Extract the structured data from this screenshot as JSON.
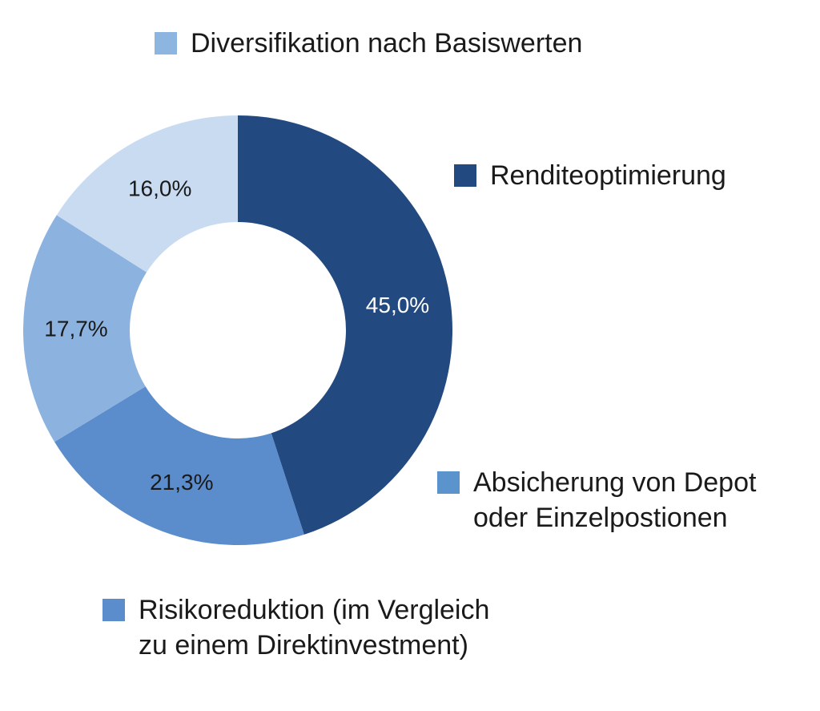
{
  "chart_data": {
    "type": "pie",
    "variant": "donut",
    "title": "",
    "categories": [
      "Renditeoptimierung",
      "Absicherung von Depot oder Einzelpostionen",
      "Risikoreduktion (im Vergleich zu einem Direktinvestment)",
      "Diversifikation nach Basiswerten"
    ],
    "values": [
      45.0,
      21.3,
      17.7,
      16.0
    ],
    "value_labels": [
      "45,0%",
      "21,3%",
      "17,7%",
      "16,0%"
    ],
    "colors": [
      "#234a80",
      "#5b8ccb",
      "#8cb2e0",
      "#c9dbf1"
    ],
    "label_colors": [
      "#ffffff",
      "#1a1a1a",
      "#1a1a1a",
      "#1a1a1a"
    ],
    "start_angle_deg": 0,
    "direction": "clockwise",
    "legend": {
      "placement": "around",
      "entries": [
        {
          "lines": [
            "Diversifikation nach Basiswerten"
          ],
          "color": "#8cb6e0"
        },
        {
          "lines": [
            "Renditeoptimierung"
          ],
          "color": "#234a80"
        },
        {
          "lines": [
            "Absicherung von Depot",
            "oder Einzelpostionen"
          ],
          "color": "#5b93cc"
        },
        {
          "lines": [
            "Risikoreduktion (im Vergleich",
            "zu einem Direktinvestment)"
          ],
          "color": "#5b8ccb"
        }
      ]
    }
  }
}
